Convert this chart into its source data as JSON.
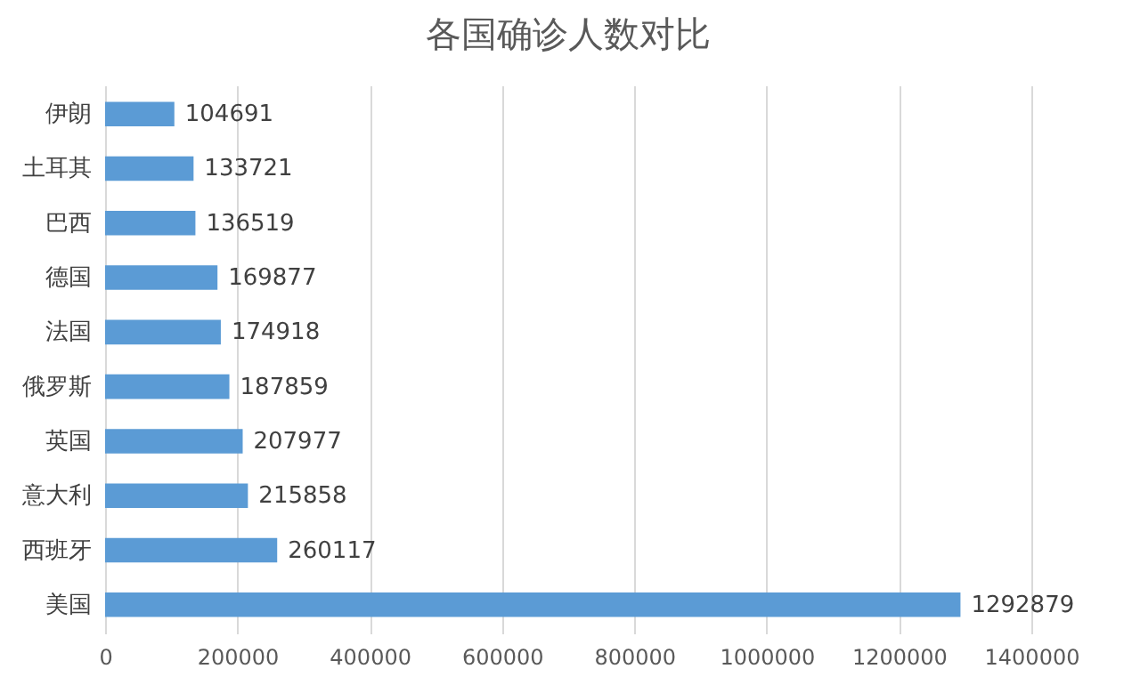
{
  "chart_data": {
    "type": "bar",
    "orientation": "horizontal",
    "title": "各国确诊人数对比",
    "categories": [
      "伊朗",
      "土耳其",
      "巴西",
      "德国",
      "法国",
      "俄罗斯",
      "英国",
      "意大利",
      "西班牙",
      "美国"
    ],
    "series": [
      {
        "color": "#5b9bd5",
        "values": [
          104691,
          133721,
          136519,
          169877,
          174918,
          187859,
          207977,
          215858,
          260117,
          1292879
        ]
      }
    ],
    "xlim": [
      0,
      1400000
    ],
    "xticks": [
      0,
      200000,
      400000,
      600000,
      800000,
      1000000,
      1200000,
      1400000
    ],
    "grid": "x",
    "data_labels": true,
    "legend": false
  }
}
